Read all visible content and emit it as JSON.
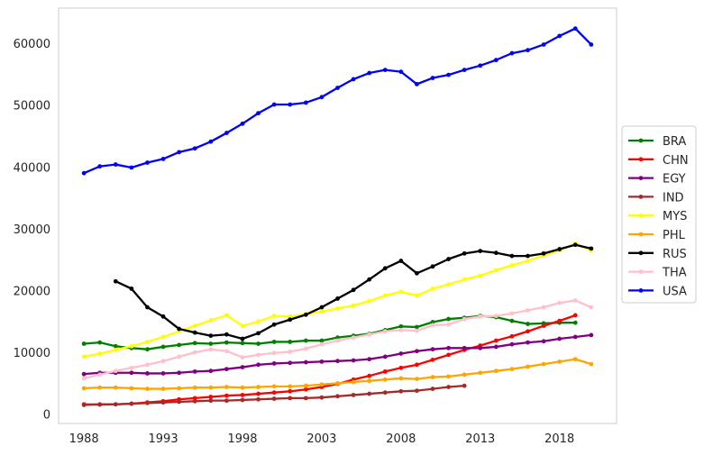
{
  "chart_data": {
    "type": "line",
    "title": "",
    "xlabel": "",
    "ylabel": "",
    "xlim": [
      1986.4,
      2021.6
    ],
    "ylim": [
      -1500,
      65700
    ],
    "xticks": [
      1988,
      1993,
      1998,
      2003,
      2008,
      2013,
      2018
    ],
    "yticks": [
      0,
      10000,
      20000,
      30000,
      40000,
      50000,
      60000
    ],
    "grid": false,
    "legend": "right-outside",
    "series": [
      {
        "name": "BRA",
        "color": "#008000",
        "start": 1988,
        "values": [
          11400,
          11600,
          11000,
          10700,
          10500,
          10900,
          11200,
          11500,
          11400,
          11600,
          11500,
          11400,
          11700,
          11700,
          11900,
          11900,
          12400,
          12700,
          13000,
          13600,
          14200,
          14100,
          14900,
          15400,
          15600,
          15900,
          15700,
          15100,
          14600,
          14700,
          14800,
          14800
        ]
      },
      {
        "name": "CHN",
        "color": "#ff0000",
        "start": 1988,
        "values": [
          1600,
          1550,
          1600,
          1700,
          1900,
          2100,
          2400,
          2600,
          2800,
          3000,
          3100,
          3300,
          3500,
          3700,
          4000,
          4400,
          4900,
          5600,
          6200,
          6900,
          7500,
          8000,
          8800,
          9600,
          10400,
          11100,
          11900,
          12600,
          13400,
          14300,
          15100,
          16000
        ]
      },
      {
        "name": "EGY",
        "color": "#800080",
        "start": 1988,
        "values": [
          6500,
          6700,
          6700,
          6700,
          6600,
          6600,
          6700,
          6900,
          7000,
          7300,
          7600,
          8000,
          8200,
          8300,
          8400,
          8500,
          8600,
          8700,
          8900,
          9300,
          9800,
          10200,
          10500,
          10700,
          10700,
          10700,
          10900,
          11300,
          11600,
          11800,
          12200,
          12500,
          12800
        ]
      },
      {
        "name": "IND",
        "color": "#a52a2a",
        "start": 1988,
        "values": [
          1500,
          1600,
          1600,
          1700,
          1800,
          1900,
          2000,
          2100,
          2200,
          2200,
          2300,
          2400,
          2500,
          2600,
          2600,
          2700,
          2900,
          3100,
          3300,
          3500,
          3700,
          3800,
          4100,
          4400,
          4600
        ]
      },
      {
        "name": "MYS",
        "color": "#ffff00",
        "start": 1988,
        "values": [
          9300,
          9800,
          10400,
          11000,
          11700,
          12500,
          13400,
          14300,
          15200,
          16000,
          14300,
          15000,
          15900,
          15800,
          16200,
          16600,
          17100,
          17600,
          18300,
          19200,
          19800,
          19200,
          20300,
          21000,
          21800,
          22400,
          23300,
          24100,
          24800,
          25700,
          26500,
          27600,
          26500
        ]
      },
      {
        "name": "PHL",
        "color": "#ffa500",
        "start": 1988,
        "values": [
          4200,
          4300,
          4300,
          4200,
          4100,
          4100,
          4200,
          4300,
          4300,
          4400,
          4300,
          4400,
          4500,
          4500,
          4600,
          4800,
          5000,
          5200,
          5400,
          5600,
          5800,
          5700,
          6000,
          6100,
          6400,
          6700,
          7000,
          7300,
          7700,
          8100,
          8500,
          8900,
          8100
        ]
      },
      {
        "name": "RUS",
        "color": "#000000",
        "start": 1990,
        "values": [
          21500,
          20300,
          17300,
          15800,
          13800,
          13200,
          12700,
          12900,
          12200,
          13100,
          14500,
          15300,
          16100,
          17300,
          18700,
          20100,
          21800,
          23600,
          24800,
          22800,
          23900,
          25100,
          26000,
          26400,
          26100,
          25600,
          25600,
          26000,
          26700,
          27400,
          26800
        ]
      },
      {
        "name": "THA",
        "color": "#ffc0cb",
        "start": 1988,
        "values": [
          5800,
          6400,
          7000,
          7500,
          8000,
          8600,
          9300,
          10000,
          10500,
          10200,
          9200,
          9600,
          9900,
          10100,
          10600,
          11300,
          11900,
          12400,
          12900,
          13400,
          13600,
          13500,
          14400,
          14500,
          15400,
          15800,
          15900,
          16300,
          16800,
          17300,
          18000,
          18400,
          17300
        ]
      },
      {
        "name": "USA",
        "color": "#0000ff",
        "start": 1988,
        "values": [
          39000,
          40100,
          40400,
          39900,
          40700,
          41300,
          42400,
          43000,
          44100,
          45500,
          47000,
          48700,
          50100,
          50100,
          50400,
          51300,
          52800,
          54200,
          55200,
          55700,
          55400,
          53400,
          54400,
          54900,
          55700,
          56400,
          57300,
          58400,
          58900,
          59800,
          61200,
          62400,
          59800
        ]
      }
    ]
  }
}
